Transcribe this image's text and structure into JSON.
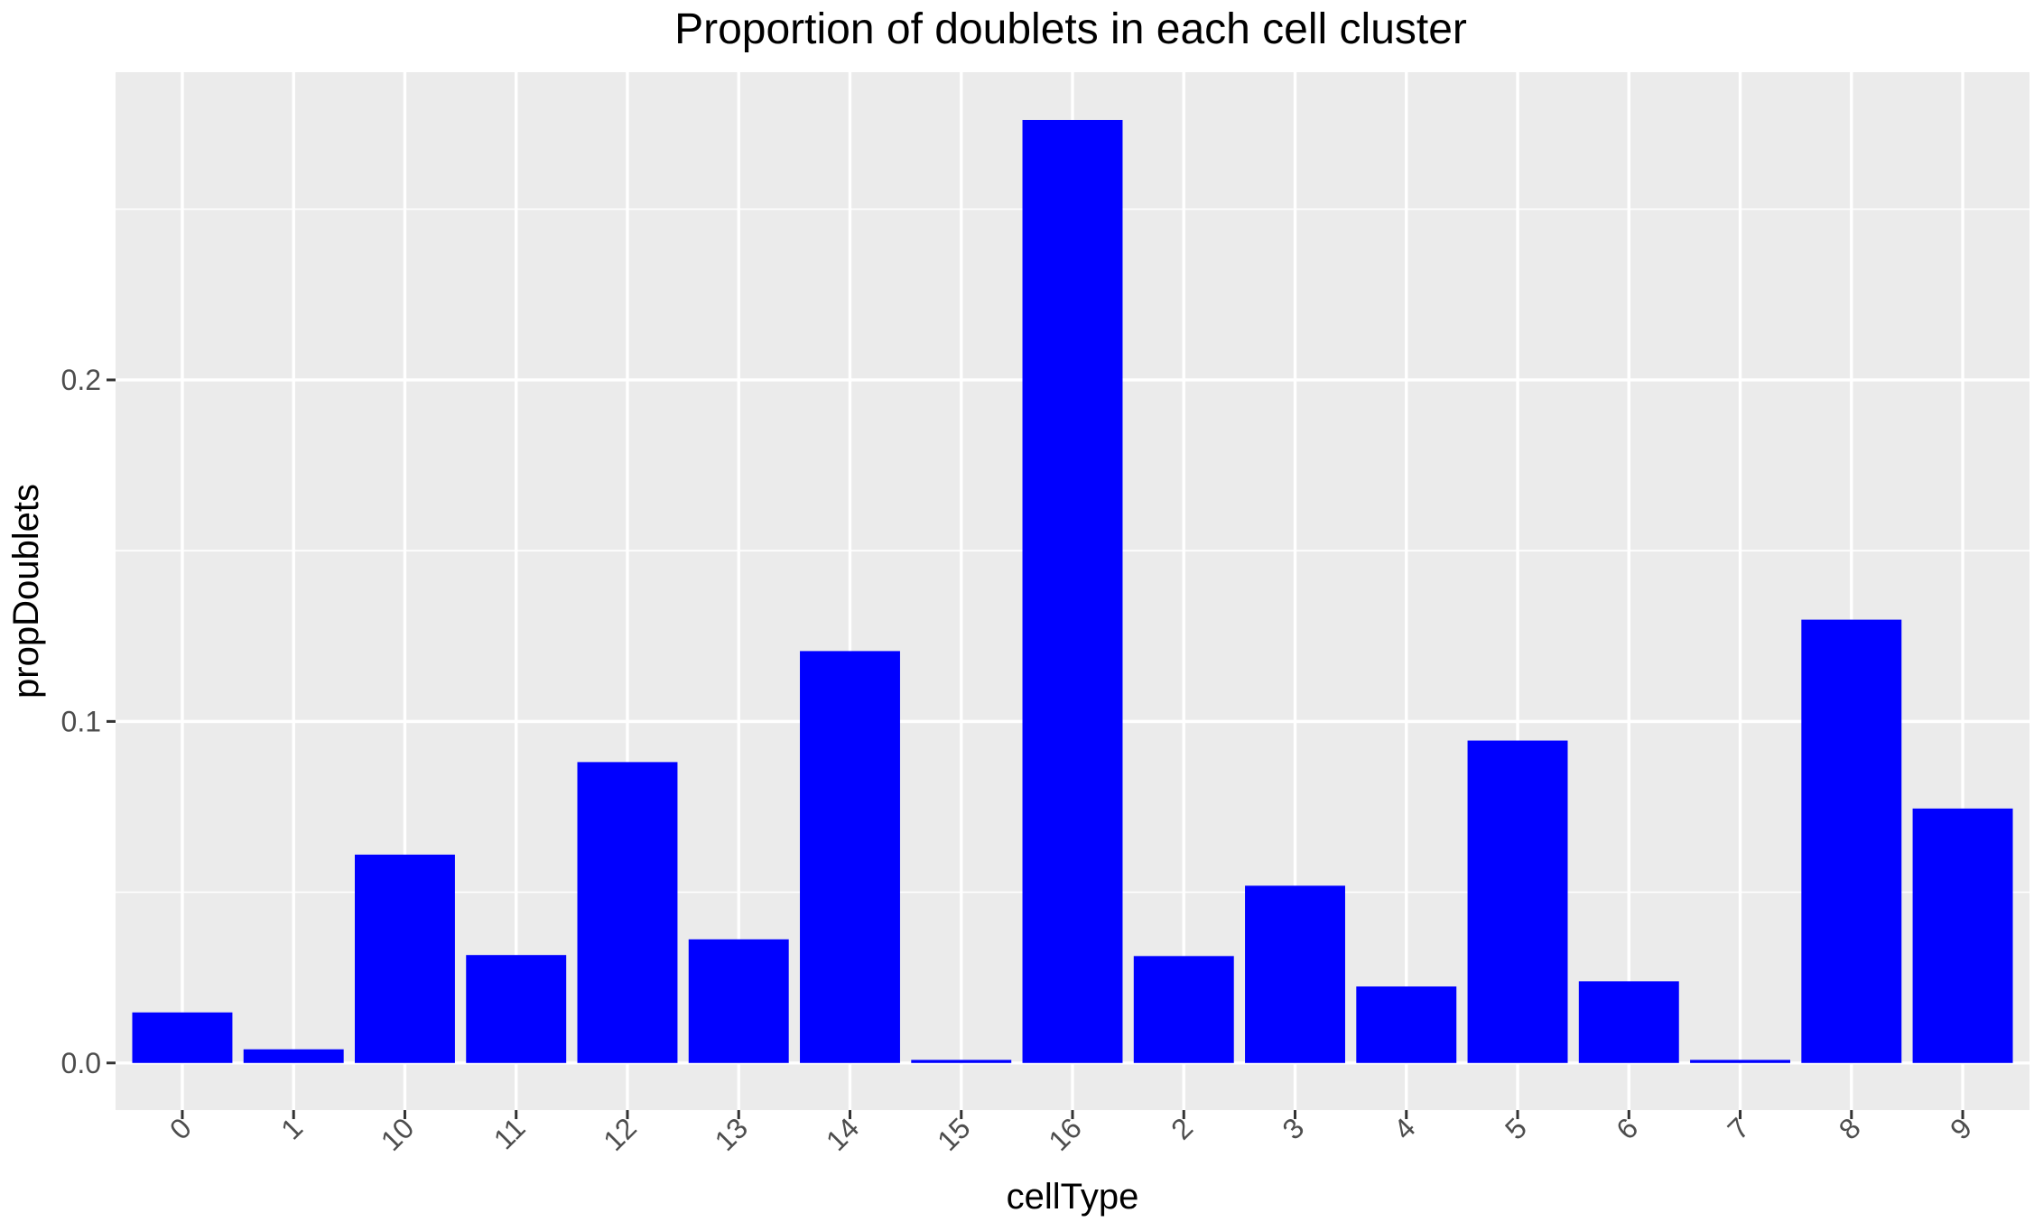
{
  "chart_data": {
    "type": "bar",
    "title": "Proportion of doublets in each cell cluster",
    "xlabel": "cellType",
    "ylabel": "propDoublets",
    "categories": [
      "0",
      "1",
      "10",
      "11",
      "12",
      "13",
      "14",
      "15",
      "16",
      "2",
      "3",
      "4",
      "5",
      "6",
      "7",
      "8",
      "9"
    ],
    "values": [
      0.0148,
      0.004,
      0.061,
      0.0316,
      0.0881,
      0.0362,
      0.1206,
      0.0009,
      0.2761,
      0.0313,
      0.0519,
      0.0224,
      0.0944,
      0.0239,
      0.0009,
      0.1298,
      0.0745
    ],
    "yticks": [
      0.0,
      0.1,
      0.2
    ],
    "ytick_labels": [
      "0.0",
      "0.1",
      "0.2"
    ],
    "ylim": [
      -0.0138,
      0.2901
    ],
    "grid": true,
    "legend": "none",
    "colors": {
      "bar": "#0000FF",
      "panel_background": "#EBEBEB",
      "grid_major": "#FFFFFF",
      "tick_text": "#4D4D4D",
      "axis_tick": "#333333"
    }
  }
}
